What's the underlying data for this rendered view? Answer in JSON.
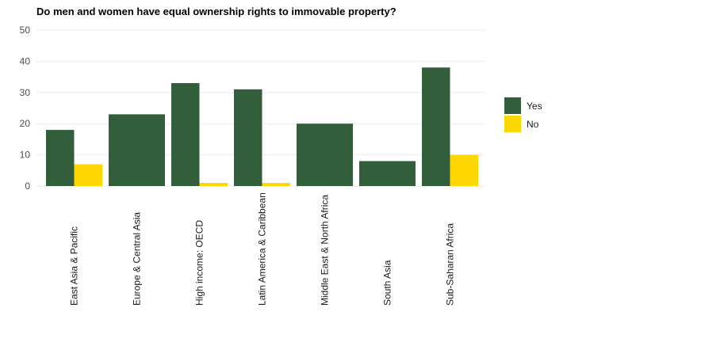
{
  "chart_data": {
    "type": "bar",
    "title": "Do men and women have equal ownership rights to immovable property?",
    "xlabel": "",
    "ylabel": "",
    "categories": [
      "East Asia & Pacific",
      "Europe & Central Asia",
      "High income: OECD",
      "Latin America & Caribbean",
      "Middle East & North Africa",
      "South Asia",
      "Sub-Saharan Africa"
    ],
    "series": [
      {
        "name": "Yes",
        "color": "#335e3b",
        "values": [
          18,
          23,
          33,
          31,
          20,
          8,
          38
        ]
      },
      {
        "name": "No",
        "color": "#ffd700",
        "values": [
          7,
          0,
          1,
          1,
          0,
          0,
          10
        ]
      }
    ],
    "ylim": [
      0,
      50
    ],
    "yticks": [
      0,
      10,
      20,
      30,
      40,
      50
    ],
    "grid": true,
    "legend": "right"
  }
}
